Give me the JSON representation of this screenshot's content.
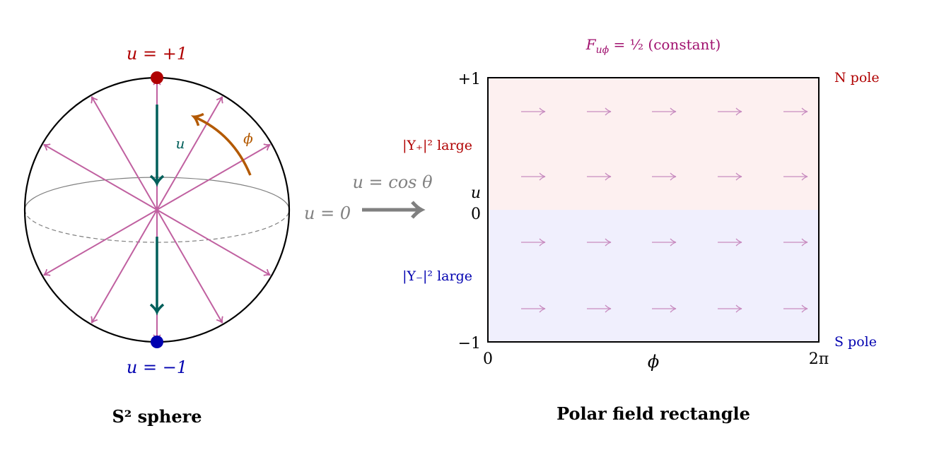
{
  "sphere": {
    "north_label": "u = +1",
    "south_label": "u = −1",
    "equator_label": "u = 0",
    "u_label": "u",
    "phi_label": "ϕ",
    "caption": "S² sphere"
  },
  "mapping": {
    "label": "u = cos θ"
  },
  "rectangle": {
    "title": "F_uϕ = ½ (constant)",
    "title_main": "F",
    "title_sub": "uϕ",
    "title_rest": " = ½ (constant)",
    "y_top": "+1",
    "y_mid_0": "0",
    "y_mid_u": "u",
    "y_bottom": "−1",
    "x_left": "0",
    "x_mid": "ϕ",
    "x_right": "2π",
    "north_pole": "N pole",
    "south_pole": "S pole",
    "upper_region": "|Y₊|² large",
    "lower_region": "|Y₋|² large",
    "caption": "Polar field rectangle"
  },
  "colors": {
    "north": "#b00000",
    "south": "#0000b0",
    "field": "#c060a0",
    "teal": "#005f5a",
    "orange": "#b35900",
    "gray": "#808080",
    "upper_fill": "#fdf0f0",
    "lower_fill": "#f0effd",
    "title": "#a0106e"
  }
}
